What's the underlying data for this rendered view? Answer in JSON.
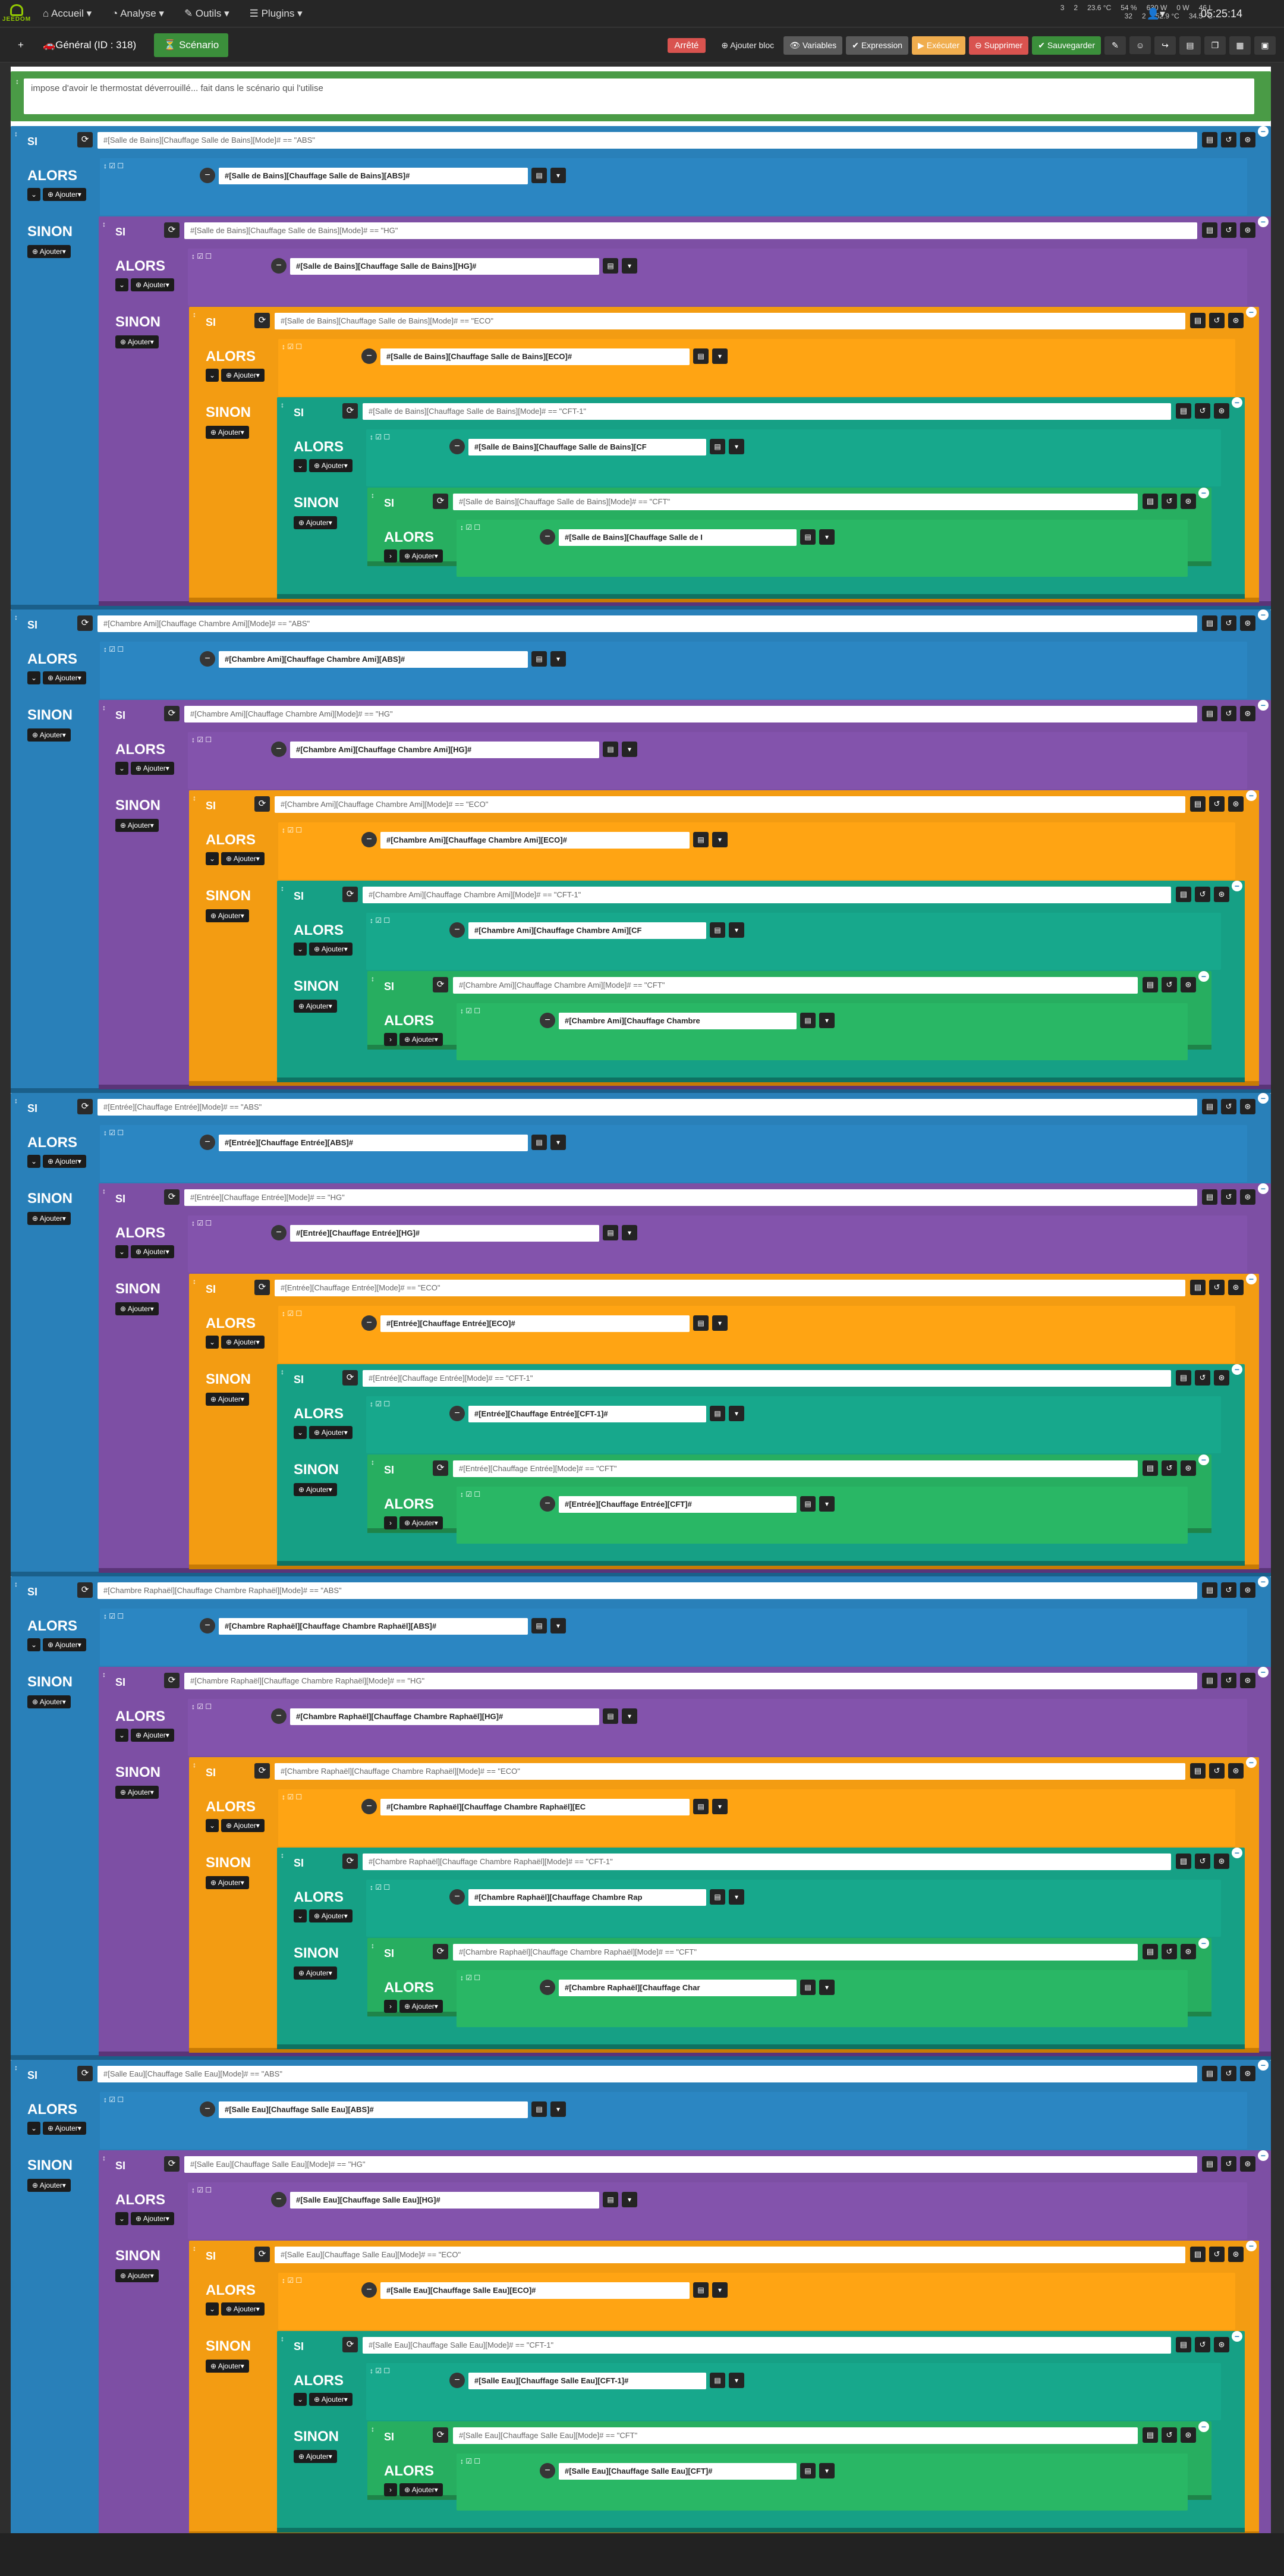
{
  "nav": {
    "logo": "JEEDOM",
    "menu": [
      "Accueil ▾",
      "Analyse ▾",
      "Outils ▾",
      "Plugins ▾"
    ],
    "status_top": [
      "3",
      "2",
      "23.6 °C",
      "54 %",
      "630 W",
      "0 W",
      "46 L",
      "32",
      "2",
      "52.9 °C",
      "34.5 °C"
    ],
    "clock": "05:25:14",
    "user": "▾"
  },
  "toolbar": {
    "plus": "+",
    "general": "Général (ID : 318)",
    "scenario": "Scénario",
    "state": "Arrêté",
    "add_block": "Ajouter bloc",
    "variables": "Variables",
    "expression": "Expression",
    "execute": "Exécuter",
    "delete": "Supprimer",
    "save": "Sauvegarder"
  },
  "comment": "impose d'avoir le thermostat déverrouillé... fait dans le scénario qui l'utilise",
  "labels": {
    "si": "SI",
    "alors": "ALORS",
    "sinon": "SINON",
    "ajouter": "Ajouter▾",
    "add_icon": "⊕"
  },
  "rooms": [
    {
      "room": "Salle de Bains",
      "cond": [
        "#[Salle de Bains][Chauffage Salle de Bains][Mode]# == \"ABS\"",
        "#[Salle de Bains][Chauffage Salle de Bains][Mode]# == \"HG\"",
        "#[Salle de Bains][Chauffage Salle de Bains][Mode]# == \"ECO\"",
        "#[Salle de Bains][Chauffage Salle de Bains][Mode]# == \"CFT-1\"",
        "#[Salle de Bains][Chauffage Salle de Bains][Mode]# == \"CFT\""
      ],
      "cmd": [
        "#[Salle de Bains][Chauffage Salle de Bains][ABS]#",
        "#[Salle de Bains][Chauffage Salle de Bains][HG]#",
        "#[Salle de Bains][Chauffage Salle de Bains][ECO]#",
        "#[Salle de Bains][Chauffage Salle de Bains][CF",
        "#[Salle de Bains][Chauffage Salle de I"
      ]
    },
    {
      "room": "Chambre Ami",
      "cond": [
        "#[Chambre Ami][Chauffage Chambre Ami][Mode]# == \"ABS\"",
        "#[Chambre Ami][Chauffage Chambre Ami][Mode]# == \"HG\"",
        "#[Chambre Ami][Chauffage Chambre Ami][Mode]# == \"ECO\"",
        "#[Chambre Ami][Chauffage Chambre Ami][Mode]# == \"CFT-1\"",
        "#[Chambre Ami][Chauffage Chambre Ami][Mode]# == \"CFT\""
      ],
      "cmd": [
        "#[Chambre Ami][Chauffage Chambre Ami][ABS]#",
        "#[Chambre Ami][Chauffage Chambre Ami][HG]#",
        "#[Chambre Ami][Chauffage Chambre Ami][ECO]#",
        "#[Chambre Ami][Chauffage Chambre Ami][CF",
        "#[Chambre Ami][Chauffage Chambre"
      ]
    },
    {
      "room": "Entrée",
      "cond": [
        "#[Entrée][Chauffage Entrée][Mode]# == \"ABS\"",
        "#[Entrée][Chauffage Entrée][Mode]# == \"HG\"",
        "#[Entrée][Chauffage Entrée][Mode]# == \"ECO\"",
        "#[Entrée][Chauffage Entrée][Mode]# == \"CFT-1\"",
        "#[Entrée][Chauffage Entrée][Mode]# == \"CFT\""
      ],
      "cmd": [
        "#[Entrée][Chauffage Entrée][ABS]#",
        "#[Entrée][Chauffage Entrée][HG]#",
        "#[Entrée][Chauffage Entrée][ECO]#",
        "#[Entrée][Chauffage Entrée][CFT-1]#",
        "#[Entrée][Chauffage Entrée][CFT]#"
      ]
    },
    {
      "room": "Chambre Raphaël",
      "cond": [
        "#[Chambre Raphaël][Chauffage Chambre Raphaël][Mode]# == \"ABS\"",
        "#[Chambre Raphaël][Chauffage Chambre Raphaël][Mode]# == \"HG\"",
        "#[Chambre Raphaël][Chauffage Chambre Raphaël][Mode]# == \"ECO\"",
        "#[Chambre Raphaël][Chauffage Chambre Raphaël][Mode]# == \"CFT-1\"",
        "#[Chambre Raphaël][Chauffage Chambre Raphaël][Mode]# == \"CFT\""
      ],
      "cmd": [
        "#[Chambre Raphaël][Chauffage Chambre Raphaël][ABS]#",
        "#[Chambre Raphaël][Chauffage Chambre Raphaël][HG]#",
        "#[Chambre Raphaël][Chauffage Chambre Raphaël][EC",
        "#[Chambre Raphaël][Chauffage Chambre Rap",
        "#[Chambre Raphaël][Chauffage Char"
      ]
    },
    {
      "room": "Salle Eau",
      "cond": [
        "#[Salle Eau][Chauffage Salle Eau][Mode]# == \"ABS\"",
        "#[Salle Eau][Chauffage Salle Eau][Mode]# == \"HG\"",
        "#[Salle Eau][Chauffage Salle Eau][Mode]# == \"ECO\"",
        "#[Salle Eau][Chauffage Salle Eau][Mode]# == \"CFT-1\"",
        "#[Salle Eau][Chauffage Salle Eau][Mode]# == \"CFT\""
      ],
      "cmd": [
        "#[Salle Eau][Chauffage Salle Eau][ABS]#",
        "#[Salle Eau][Chauffage Salle Eau][HG]#",
        "#[Salle Eau][Chauffage Salle Eau][ECO]#",
        "#[Salle Eau][Chauffage Salle Eau][CFT-1]#",
        "#[Salle Eau][Chauffage Salle Eau][CFT]#"
      ]
    }
  ],
  "colors": {
    "blue": "#2980b9",
    "purple": "#7d4fa4",
    "orange": "#f39c12",
    "teal": "#16a085",
    "green": "#27ae60",
    "comment": "#4a9b46"
  }
}
